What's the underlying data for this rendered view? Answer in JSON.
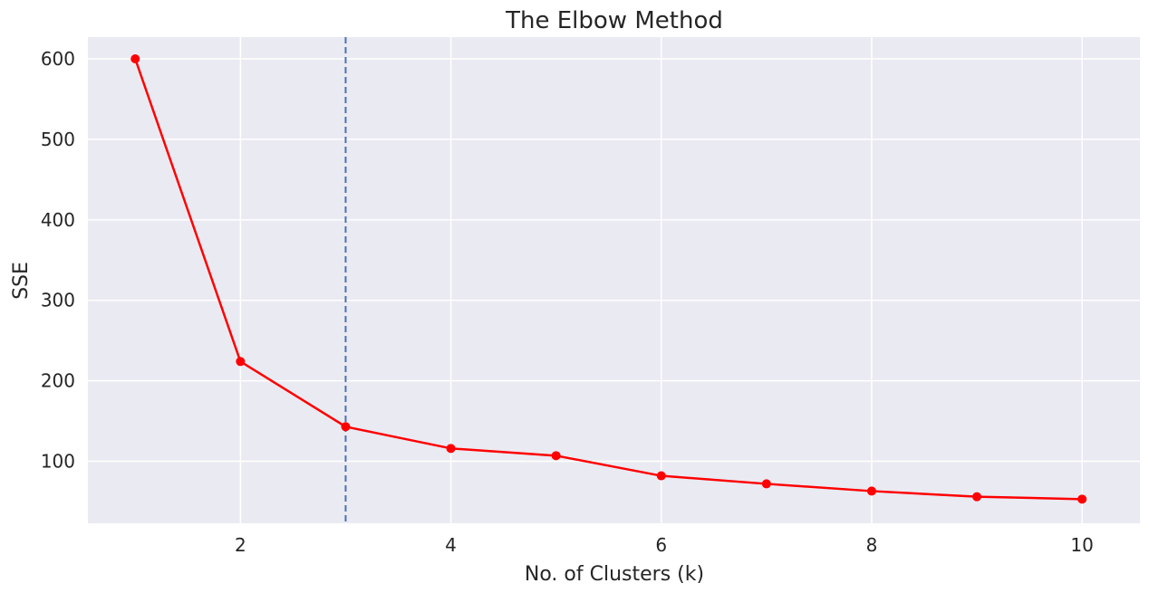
{
  "chart_data": {
    "type": "line",
    "title": "The Elbow Method",
    "xlabel": "No. of Clusters (k)",
    "ylabel": "SSE",
    "x": [
      1,
      2,
      3,
      4,
      5,
      6,
      7,
      8,
      9,
      10
    ],
    "series": [
      {
        "values": [
          600,
          224,
          143,
          116,
          107,
          82,
          72,
          63,
          56,
          53
        ],
        "color": "#ff0000",
        "marker": "circle"
      }
    ],
    "xlim": [
      0.55,
      10.55
    ],
    "ylim": [
      23,
      627
    ],
    "xticks": [
      2,
      4,
      6,
      8,
      10
    ],
    "xtick_labels": [
      "2",
      "4",
      "6",
      "8",
      "10"
    ],
    "yticks": [
      100,
      200,
      300,
      400,
      500,
      600
    ],
    "ytick_labels": [
      "100",
      "200",
      "300",
      "400",
      "500",
      "600"
    ],
    "reference_line": {
      "orientation": "vertical",
      "x": 3,
      "style": "dashed",
      "color": "#4c72b0"
    },
    "grid": true,
    "legend": "none",
    "background_color": "#eaeaf2"
  }
}
